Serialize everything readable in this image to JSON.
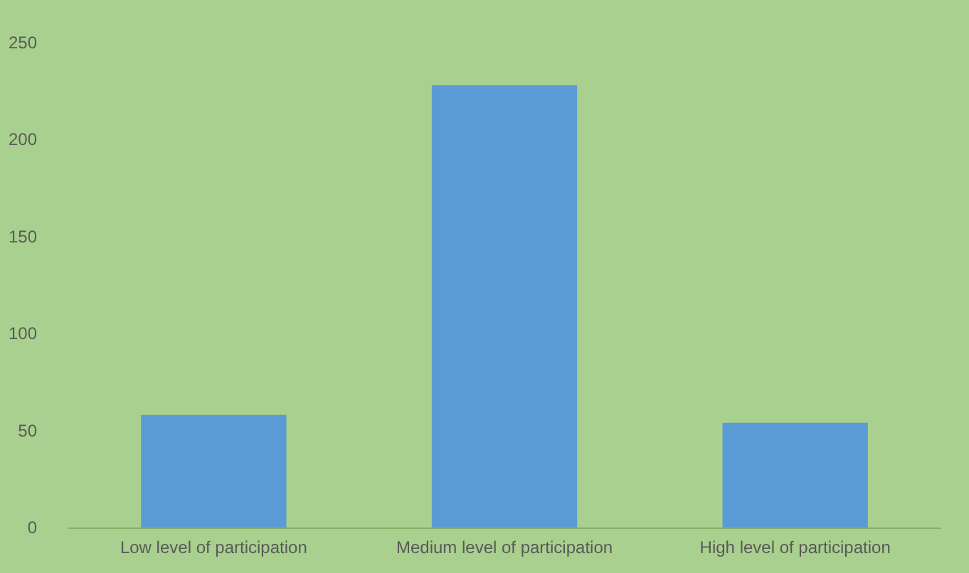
{
  "chart_data": {
    "type": "bar",
    "categories": [
      "Low level of participation",
      "Medium level of participation",
      "High level of participation"
    ],
    "values": [
      58,
      228,
      54
    ],
    "color": "#5b9bd5",
    "ylim": [
      0,
      250
    ],
    "yticks": [
      0,
      50,
      100,
      150,
      200,
      250
    ],
    "grid": false
  }
}
